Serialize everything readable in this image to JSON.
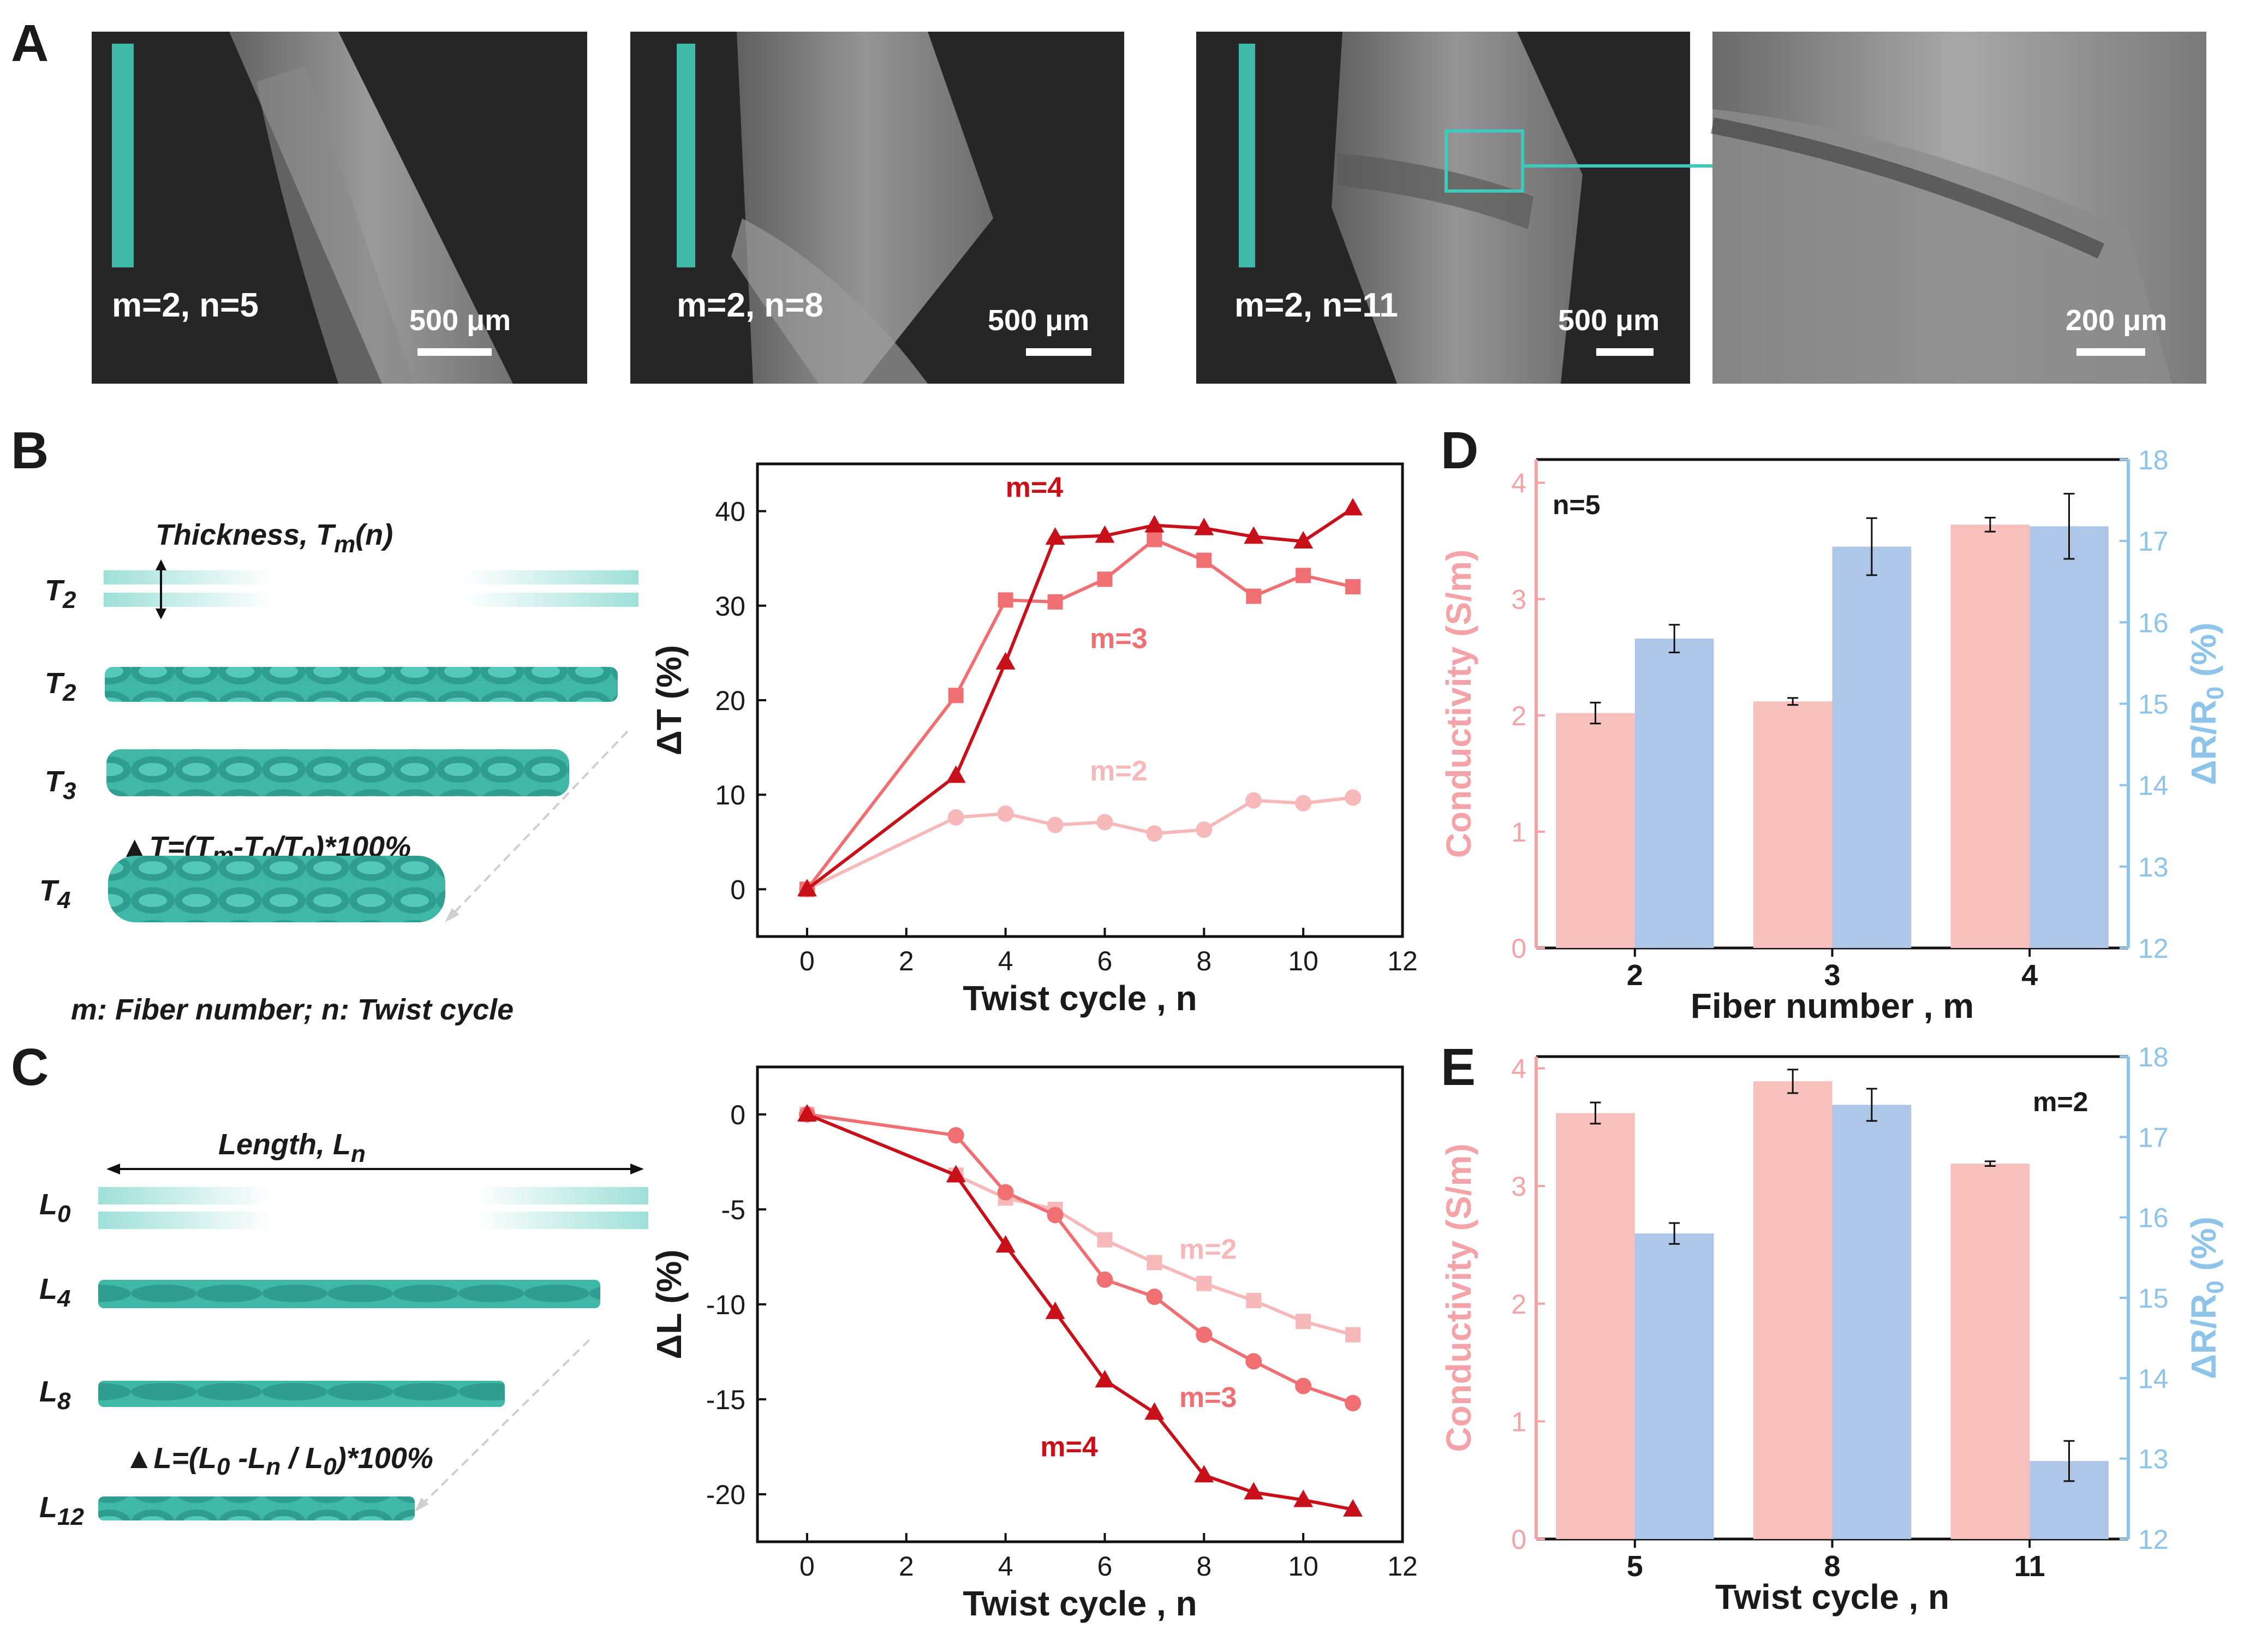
{
  "panel_labels": {
    "a": "A",
    "b": "B",
    "c": "C",
    "d": "D",
    "e": "E"
  },
  "colors": {
    "teal": "#3fb8a8",
    "m2": "#f6b8b8",
    "m3": "#ef6f72",
    "m4": "#c8101a",
    "bar_pink": "#f7c0bd",
    "bar_blue": "#aec6e8",
    "axis_pink": "#f4a3a8",
    "axis_blue": "#8ec3ea"
  },
  "sem_images": [
    {
      "label": "m=2, n=5",
      "scale": "500 μm"
    },
    {
      "label": "m=2, n=8",
      "scale": "500 μm"
    },
    {
      "label": "m=2, n=11",
      "scale": "500 μm"
    },
    {
      "label": "",
      "scale": "200 μm"
    }
  ],
  "schematic_b": {
    "title": "Thickness, T",
    "title_sub": "m",
    "title_suffix": "(n)",
    "rows": [
      {
        "label": "T",
        "sub": "2"
      },
      {
        "label": "T",
        "sub": "2"
      },
      {
        "label": "T",
        "sub": "3"
      },
      {
        "label": "T",
        "sub": "4"
      }
    ],
    "formula": "▲T=(T",
    "formula_sub1": "m",
    "formula_mid": "-T",
    "formula_sub2": "0",
    "formula_mid2": "/T",
    "formula_sub3": "0",
    "formula_end": ")*100%",
    "legend": "m: Fiber number;     n: Twist cycle"
  },
  "schematic_c": {
    "title": "Length, L",
    "title_sub": "n",
    "rows": [
      {
        "label": "L",
        "sub": "0"
      },
      {
        "label": "L",
        "sub": "4"
      },
      {
        "label": "L",
        "sub": "8"
      },
      {
        "label": "L",
        "sub": "12"
      }
    ],
    "formula": "▲L=(L",
    "formula_sub1": "0",
    "formula_mid": " -L",
    "formula_sub2": "n",
    "formula_mid2": " / L",
    "formula_sub3": "0",
    "formula_end": ")*100%"
  },
  "chart_data": [
    {
      "id": "B",
      "type": "line",
      "xlabel": "Twist cycle , n",
      "ylabel": "ΔT (%)",
      "xlim": [
        -1,
        12
      ],
      "ylim": [
        -5,
        45
      ],
      "xticks": [
        0,
        2,
        4,
        6,
        8,
        10,
        12
      ],
      "yticks": [
        0,
        10,
        20,
        30,
        40
      ],
      "series": [
        {
          "name": "m=2",
          "marker": "circle",
          "x": [
            0,
            3,
            4,
            5,
            6,
            7,
            8,
            9,
            10,
            11
          ],
          "values": [
            0,
            7.6,
            8.0,
            6.8,
            7.1,
            5.9,
            6.3,
            9.4,
            9.1,
            9.7
          ]
        },
        {
          "name": "m=3",
          "marker": "square",
          "x": [
            0,
            3,
            4,
            5,
            6,
            7,
            8,
            9,
            10,
            11
          ],
          "values": [
            0,
            20.5,
            30.6,
            30.4,
            32.8,
            37.0,
            34.8,
            31.0,
            33.2,
            32.0
          ]
        },
        {
          "name": "m=4",
          "marker": "triangle",
          "x": [
            0,
            3,
            4,
            5,
            6,
            7,
            8,
            9,
            10,
            11
          ],
          "values": [
            0,
            12.0,
            24.0,
            37.2,
            37.4,
            38.5,
            38.2,
            37.3,
            36.8,
            40.3
          ]
        }
      ]
    },
    {
      "id": "C",
      "type": "line",
      "xlabel": "Twist cycle , n",
      "ylabel": "ΔL (%)",
      "xlim": [
        -1,
        12
      ],
      "ylim": [
        -22.5,
        2.5
      ],
      "xticks": [
        0,
        2,
        4,
        6,
        8,
        10,
        12
      ],
      "yticks": [
        0,
        -5,
        -10,
        -15,
        -20
      ],
      "series": [
        {
          "name": "m=2",
          "marker": "square",
          "x": [
            0,
            3,
            4,
            5,
            6,
            7,
            8,
            9,
            10,
            11
          ],
          "values": [
            0,
            -3.2,
            -4.4,
            -5.0,
            -6.6,
            -7.8,
            -8.9,
            -9.8,
            -10.9,
            -11.6
          ]
        },
        {
          "name": "m=3",
          "marker": "circle",
          "x": [
            0,
            3,
            4,
            5,
            6,
            7,
            8,
            9,
            10,
            11
          ],
          "values": [
            0,
            -1.1,
            -4.1,
            -5.3,
            -8.7,
            -9.6,
            -11.6,
            -13.0,
            -14.3,
            -15.2
          ]
        },
        {
          "name": "m=4",
          "marker": "triangle",
          "x": [
            0,
            3,
            4,
            5,
            6,
            7,
            8,
            9,
            10,
            11
          ],
          "values": [
            0,
            -3.2,
            -6.9,
            -10.4,
            -14.0,
            -15.7,
            -19.0,
            -19.9,
            -20.3,
            -20.8
          ]
        }
      ]
    },
    {
      "id": "D",
      "type": "bar",
      "annotation": "n=5",
      "xlabel": "Fiber number , m",
      "categories": [
        "2",
        "3",
        "4"
      ],
      "ylabel_left": "Conductivity (S/m)",
      "ylabel_right": "ΔR/R",
      "ylabel_right_sub": "0",
      "ylabel_right_suffix": " (%)",
      "ylim_left": [
        0,
        4.2
      ],
      "ylim_right": [
        12,
        18
      ],
      "yticks_left": [
        0,
        1,
        2,
        3,
        4
      ],
      "yticks_right": [
        12,
        13,
        14,
        15,
        16,
        17,
        18
      ],
      "series": [
        {
          "name": "Conductivity",
          "axis": "left",
          "values": [
            2.02,
            2.12,
            3.64
          ],
          "errors": [
            0.09,
            0.03,
            0.06
          ]
        },
        {
          "name": "ΔR/R0",
          "axis": "right",
          "values": [
            15.8,
            16.93,
            17.18
          ],
          "errors": [
            0.17,
            0.35,
            0.4
          ]
        }
      ]
    },
    {
      "id": "E",
      "type": "bar",
      "annotation": "m=2",
      "xlabel": "Twist cycle , n",
      "categories": [
        "5",
        "8",
        "11"
      ],
      "ylabel_left": "Conductivity (S/m)",
      "ylabel_right": "ΔR/R",
      "ylabel_right_sub": "0",
      "ylabel_right_suffix": " (%)",
      "ylim_left": [
        0,
        4.1
      ],
      "ylim_right": [
        12,
        18
      ],
      "yticks_left": [
        0,
        1,
        2,
        3,
        4
      ],
      "yticks_right": [
        12,
        13,
        14,
        15,
        16,
        17,
        18
      ],
      "series": [
        {
          "name": "Conductivity",
          "axis": "left",
          "values": [
            3.62,
            3.89,
            3.19
          ],
          "errors": [
            0.09,
            0.1,
            0.02
          ]
        },
        {
          "name": "ΔR/R0",
          "axis": "right",
          "values": [
            15.8,
            17.4,
            12.97
          ],
          "errors": [
            0.13,
            0.2,
            0.25
          ]
        }
      ]
    }
  ]
}
